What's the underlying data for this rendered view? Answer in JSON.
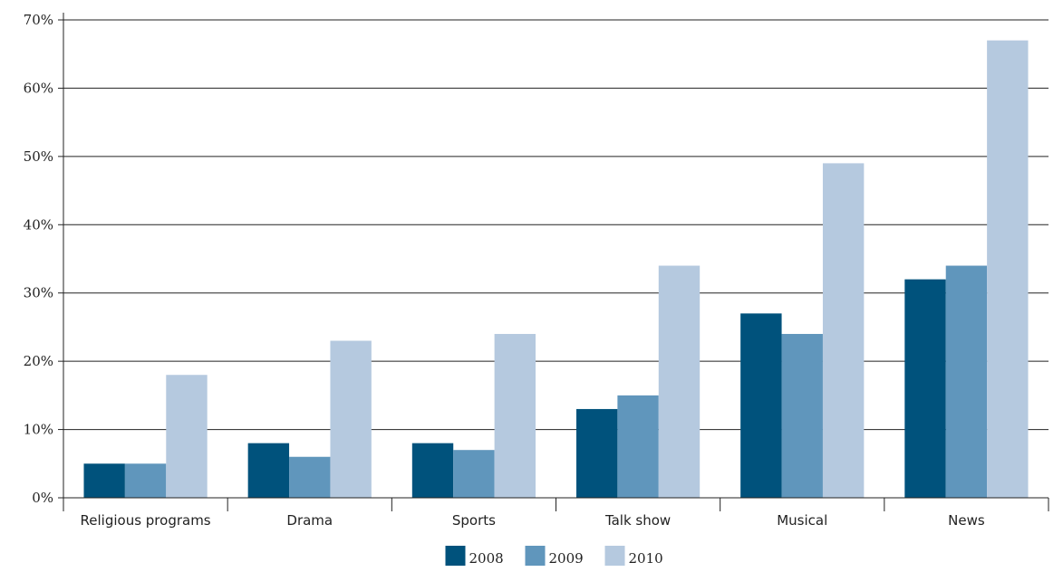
{
  "chart_data": {
    "type": "bar",
    "title": "",
    "xlabel": "",
    "ylabel": "",
    "categories": [
      "Religious programs",
      "Drama",
      "Sports",
      "Talk show",
      "Musical",
      "News"
    ],
    "series": [
      {
        "name": "2008",
        "color": "#00527c",
        "values": [
          5,
          8,
          8,
          13,
          27,
          32
        ]
      },
      {
        "name": "2009",
        "color": "#6096bc",
        "values": [
          5,
          6,
          7,
          15,
          24,
          34
        ]
      },
      {
        "name": "2010",
        "color": "#b5c9df",
        "values": [
          18,
          23,
          24,
          34,
          49,
          67
        ]
      }
    ],
    "ylim": [
      0,
      70
    ],
    "yticks": [
      0,
      10,
      20,
      30,
      40,
      50,
      60,
      70
    ],
    "ytick_labels": [
      "0%",
      "10%",
      "20%",
      "30%",
      "40%",
      "50%",
      "60%",
      "70%"
    ],
    "grid": true,
    "legend_position": "bottom-center"
  }
}
